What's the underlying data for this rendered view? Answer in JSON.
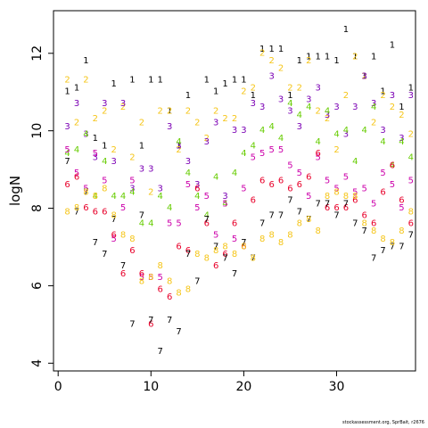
{
  "footnote": "stockassessment.org, SprBait, r2676",
  "chart_data": {
    "type": "scatter",
    "title": "",
    "xlabel": "",
    "ylabel": "logN",
    "xlim": [
      -0.5,
      38.5
    ],
    "ylim": [
      3.8,
      13.1
    ],
    "x_ticks": [
      0,
      10,
      20,
      30
    ],
    "y_ticks": [
      4,
      6,
      8,
      10,
      12
    ],
    "grid": false,
    "legend": "none",
    "note": "Points drawn as age labels 1-8 versus year index",
    "colors": {
      "1": "#000000",
      "2": "#f5c518",
      "3": "#7b00b4",
      "4": "#66cc00",
      "5": "#cc00aa",
      "6": "#e8002a",
      "7": "#000000",
      "8": "#f5c518"
    },
    "series": [
      {
        "name": "1",
        "points": [
          [
            1,
            11.0
          ],
          [
            2,
            11.1
          ],
          [
            3,
            11.8
          ],
          [
            4,
            9.8
          ],
          [
            5,
            9.6
          ],
          [
            6,
            11.2
          ],
          [
            8,
            11.3
          ],
          [
            9,
            9.6
          ],
          [
            10,
            11.3
          ],
          [
            11,
            11.3
          ],
          [
            12,
            10.5
          ],
          [
            13,
            9.6
          ],
          [
            14,
            10.9
          ],
          [
            16,
            11.3
          ],
          [
            17,
            11.0
          ],
          [
            18,
            11.2
          ],
          [
            19,
            11.3
          ],
          [
            20,
            11.3
          ],
          [
            21,
            10.9
          ],
          [
            22,
            12.1
          ],
          [
            23,
            12.1
          ],
          [
            24,
            12.1
          ],
          [
            25,
            10.9
          ],
          [
            26,
            11.8
          ],
          [
            27,
            11.9
          ],
          [
            28,
            11.9
          ],
          [
            29,
            11.9
          ],
          [
            30,
            11.8
          ],
          [
            31,
            12.6
          ],
          [
            32,
            11.9
          ],
          [
            33,
            11.4
          ],
          [
            34,
            11.9
          ],
          [
            35,
            11.0
          ],
          [
            36,
            12.2
          ],
          [
            37,
            10.6
          ],
          [
            38,
            11.1
          ]
        ]
      },
      {
        "name": "2",
        "points": [
          [
            1,
            11.3
          ],
          [
            2,
            10.2
          ],
          [
            3,
            11.3
          ],
          [
            4,
            10.3
          ],
          [
            5,
            10.5
          ],
          [
            6,
            9.5
          ],
          [
            7,
            10.6
          ],
          [
            8,
            9.3
          ],
          [
            9,
            10.2
          ],
          [
            10,
            8.4
          ],
          [
            11,
            10.5
          ],
          [
            12,
            10.5
          ],
          [
            13,
            9.5
          ],
          [
            14,
            10.5
          ],
          [
            15,
            10.2
          ],
          [
            16,
            9.8
          ],
          [
            17,
            10.5
          ],
          [
            18,
            10.3
          ],
          [
            19,
            10.3
          ],
          [
            20,
            11.0
          ],
          [
            21,
            11.1
          ],
          [
            22,
            12.0
          ],
          [
            23,
            11.8
          ],
          [
            24,
            11.6
          ],
          [
            25,
            11.1
          ],
          [
            26,
            11.1
          ],
          [
            27,
            11.8
          ],
          [
            28,
            10.5
          ],
          [
            29,
            10.3
          ],
          [
            30,
            9.5
          ],
          [
            31,
            10.9
          ],
          [
            32,
            11.9
          ],
          [
            33,
            11.4
          ],
          [
            34,
            10.2
          ],
          [
            35,
            10.9
          ],
          [
            36,
            10.6
          ],
          [
            37,
            10.4
          ],
          [
            38,
            9.9
          ]
        ]
      },
      {
        "name": "3",
        "points": [
          [
            1,
            10.1
          ],
          [
            2,
            10.7
          ],
          [
            3,
            9.9
          ],
          [
            4,
            9.3
          ],
          [
            5,
            10.7
          ],
          [
            6,
            9.2
          ],
          [
            7,
            10.7
          ],
          [
            8,
            8.5
          ],
          [
            9,
            9.0
          ],
          [
            10,
            9.0
          ],
          [
            11,
            8.5
          ],
          [
            12,
            10.1
          ],
          [
            13,
            9.6
          ],
          [
            14,
            9.2
          ],
          [
            15,
            8.6
          ],
          [
            16,
            9.7
          ],
          [
            17,
            10.2
          ],
          [
            18,
            8.3
          ],
          [
            19,
            10.0
          ],
          [
            20,
            10.0
          ],
          [
            21,
            10.7
          ],
          [
            22,
            10.6
          ],
          [
            23,
            11.4
          ],
          [
            24,
            10.8
          ],
          [
            25,
            10.5
          ],
          [
            26,
            10.1
          ],
          [
            27,
            10.8
          ],
          [
            28,
            11.1
          ],
          [
            29,
            10.4
          ],
          [
            30,
            10.6
          ],
          [
            31,
            9.9
          ],
          [
            32,
            10.6
          ],
          [
            33,
            11.4
          ],
          [
            34,
            10.7
          ],
          [
            35,
            10.0
          ],
          [
            36,
            10.9
          ],
          [
            37,
            9.8
          ],
          [
            38,
            10.9
          ]
        ]
      },
      {
        "name": "4",
        "points": [
          [
            1,
            9.4
          ],
          [
            2,
            9.5
          ],
          [
            3,
            9.9
          ],
          [
            4,
            8.3
          ],
          [
            5,
            9.2
          ],
          [
            6,
            8.3
          ],
          [
            7,
            8.3
          ],
          [
            8,
            8.4
          ],
          [
            9,
            7.6
          ],
          [
            10,
            7.6
          ],
          [
            11,
            8.3
          ],
          [
            12,
            8.0
          ],
          [
            13,
            9.7
          ],
          [
            14,
            8.9
          ],
          [
            15,
            8.3
          ],
          [
            16,
            7.8
          ],
          [
            17,
            8.8
          ],
          [
            18,
            8.1
          ],
          [
            19,
            8.9
          ],
          [
            20,
            9.4
          ],
          [
            21,
            9.6
          ],
          [
            22,
            10.0
          ],
          [
            23,
            10.1
          ],
          [
            24,
            9.8
          ],
          [
            25,
            10.7
          ],
          [
            26,
            10.4
          ],
          [
            27,
            10.6
          ],
          [
            28,
            9.7
          ],
          [
            29,
            10.5
          ],
          [
            30,
            9.9
          ],
          [
            31,
            10.0
          ],
          [
            32,
            9.2
          ],
          [
            33,
            10.0
          ],
          [
            34,
            10.6
          ],
          [
            35,
            9.7
          ],
          [
            36,
            9.1
          ],
          [
            37,
            9.7
          ],
          [
            38,
            9.3
          ]
        ]
      },
      {
        "name": "5",
        "points": [
          [
            1,
            9.5
          ],
          [
            2,
            8.9
          ],
          [
            3,
            8.5
          ],
          [
            4,
            9.4
          ],
          [
            5,
            8.7
          ],
          [
            6,
            7.2
          ],
          [
            7,
            8.0
          ],
          [
            8,
            8.7
          ],
          [
            9,
            6.2
          ],
          [
            10,
            6.2
          ],
          [
            11,
            6.2
          ],
          [
            12,
            7.6
          ],
          [
            13,
            7.6
          ],
          [
            14,
            8.6
          ],
          [
            15,
            8.0
          ],
          [
            16,
            8.3
          ],
          [
            17,
            7.3
          ],
          [
            18,
            8.1
          ],
          [
            19,
            7.2
          ],
          [
            20,
            8.5
          ],
          [
            21,
            9.3
          ],
          [
            22,
            9.4
          ],
          [
            23,
            9.5
          ],
          [
            24,
            9.5
          ],
          [
            25,
            9.1
          ],
          [
            26,
            8.9
          ],
          [
            27,
            8.3
          ],
          [
            28,
            9.3
          ],
          [
            29,
            8.7
          ],
          [
            30,
            8.5
          ],
          [
            31,
            8.8
          ],
          [
            32,
            8.4
          ],
          [
            33,
            8.5
          ],
          [
            34,
            8.1
          ],
          [
            35,
            8.9
          ],
          [
            36,
            8.6
          ],
          [
            37,
            8.0
          ],
          [
            38,
            8.7
          ]
        ]
      },
      {
        "name": "6",
        "points": [
          [
            1,
            8.6
          ],
          [
            2,
            8.8
          ],
          [
            3,
            8.0
          ],
          [
            4,
            7.9
          ],
          [
            5,
            7.9
          ],
          [
            6,
            7.3
          ],
          [
            7,
            6.3
          ],
          [
            8,
            6.9
          ],
          [
            9,
            6.3
          ],
          [
            10,
            5.0
          ],
          [
            11,
            5.9
          ],
          [
            12,
            5.7
          ],
          [
            13,
            7.0
          ],
          [
            14,
            6.9
          ],
          [
            15,
            8.5
          ],
          [
            16,
            7.6
          ],
          [
            17,
            6.5
          ],
          [
            18,
            6.8
          ],
          [
            19,
            7.6
          ],
          [
            20,
            7.0
          ],
          [
            21,
            8.2
          ],
          [
            22,
            8.7
          ],
          [
            23,
            8.6
          ],
          [
            24,
            8.7
          ],
          [
            25,
            8.5
          ],
          [
            26,
            8.6
          ],
          [
            27,
            8.8
          ],
          [
            28,
            9.4
          ],
          [
            29,
            8.0
          ],
          [
            30,
            8.0
          ],
          [
            31,
            8.0
          ],
          [
            32,
            8.2
          ],
          [
            33,
            7.8
          ],
          [
            34,
            7.6
          ],
          [
            35,
            8.4
          ],
          [
            36,
            9.1
          ],
          [
            37,
            8.2
          ],
          [
            38,
            7.6
          ]
        ]
      },
      {
        "name": "7",
        "points": [
          [
            1,
            9.2
          ],
          [
            2,
            7.9
          ],
          [
            3,
            8.4
          ],
          [
            4,
            7.1
          ],
          [
            5,
            6.8
          ],
          [
            6,
            7.7
          ],
          [
            7,
            6.5
          ],
          [
            8,
            5.0
          ],
          [
            9,
            7.8
          ],
          [
            10,
            5.1
          ],
          [
            11,
            4.3
          ],
          [
            12,
            5.1
          ],
          [
            13,
            4.8
          ],
          [
            14,
            6.8
          ],
          [
            15,
            6.1
          ],
          [
            16,
            7.7
          ],
          [
            17,
            7.0
          ],
          [
            18,
            6.7
          ],
          [
            19,
            6.3
          ],
          [
            20,
            7.1
          ],
          [
            21,
            6.7
          ],
          [
            22,
            7.6
          ],
          [
            23,
            7.8
          ],
          [
            24,
            7.8
          ],
          [
            25,
            8.2
          ],
          [
            26,
            7.9
          ],
          [
            27,
            7.7
          ],
          [
            28,
            8.1
          ],
          [
            29,
            8.1
          ],
          [
            30,
            7.8
          ],
          [
            31,
            8.1
          ],
          [
            32,
            7.6
          ],
          [
            33,
            7.4
          ],
          [
            34,
            6.7
          ],
          [
            35,
            6.9
          ],
          [
            36,
            7.0
          ],
          [
            37,
            7.0
          ],
          [
            38,
            7.3
          ]
        ]
      },
      {
        "name": "8",
        "points": [
          [
            1,
            7.9
          ],
          [
            2,
            8.0
          ],
          [
            3,
            8.4
          ],
          [
            4,
            8.3
          ],
          [
            5,
            8.5
          ],
          [
            6,
            7.8
          ],
          [
            7,
            7.3
          ],
          [
            8,
            7.2
          ],
          [
            9,
            6.1
          ],
          [
            10,
            6.2
          ],
          [
            11,
            6.5
          ],
          [
            12,
            6.1
          ],
          [
            13,
            5.8
          ],
          [
            14,
            5.9
          ],
          [
            15,
            6.8
          ],
          [
            16,
            6.7
          ],
          [
            17,
            6.9
          ],
          [
            18,
            7.0
          ],
          [
            19,
            6.8
          ],
          [
            20,
            7.0
          ],
          [
            21,
            6.7
          ],
          [
            22,
            7.2
          ],
          [
            23,
            7.3
          ],
          [
            24,
            7.1
          ],
          [
            25,
            7.3
          ],
          [
            26,
            7.6
          ],
          [
            27,
            7.7
          ],
          [
            28,
            7.4
          ],
          [
            29,
            8.3
          ],
          [
            30,
            8.4
          ],
          [
            31,
            8.3
          ],
          [
            32,
            8.3
          ],
          [
            33,
            7.6
          ],
          [
            34,
            7.4
          ],
          [
            35,
            7.2
          ],
          [
            36,
            7.1
          ],
          [
            37,
            7.4
          ],
          [
            38,
            7.9
          ]
        ]
      }
    ]
  }
}
